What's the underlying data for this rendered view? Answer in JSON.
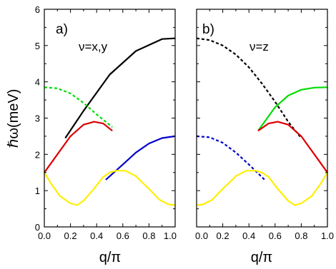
{
  "chart_data": [
    {
      "type": "line",
      "panel_label": "a)",
      "annotation": "ν=x,y",
      "xlabel": "q/π",
      "ylabel": "ℏω(meV)",
      "xlim": [
        0,
        1
      ],
      "ylim": [
        0,
        6
      ],
      "x_ticks": [
        "0.0",
        "0.2",
        "0.4",
        "0.6",
        "0.8",
        "1.0"
      ],
      "y_ticks": [
        "0",
        "1",
        "2",
        "3",
        "4",
        "5",
        "6"
      ],
      "grid": false,
      "series": [
        {
          "color": "#000000",
          "style": "solid",
          "x": [
            0.16,
            0.3,
            0.5,
            0.7,
            0.9,
            1.0
          ],
          "y": [
            2.45,
            3.2,
            4.2,
            4.85,
            5.18,
            5.2
          ]
        },
        {
          "color": "#00dd00",
          "style": "dashed",
          "x": [
            0.0,
            0.1,
            0.2,
            0.3,
            0.4,
            0.52
          ],
          "y": [
            3.85,
            3.82,
            3.68,
            3.42,
            3.1,
            2.75
          ]
        },
        {
          "color": "#dd0000",
          "style": "solid",
          "x": [
            0.0,
            0.1,
            0.2,
            0.3,
            0.38,
            0.45,
            0.52
          ],
          "y": [
            1.5,
            2.0,
            2.5,
            2.82,
            2.9,
            2.85,
            2.65
          ]
        },
        {
          "color": "#0000cc",
          "style": "solid",
          "x": [
            0.47,
            0.6,
            0.7,
            0.8,
            0.9,
            1.0
          ],
          "y": [
            1.3,
            1.72,
            2.05,
            2.3,
            2.45,
            2.5
          ]
        },
        {
          "color": "#ffee00",
          "style": "solid",
          "x": [
            0.0,
            0.05,
            0.12,
            0.2,
            0.25,
            0.3,
            0.38,
            0.45,
            0.5,
            0.55,
            0.62,
            0.7,
            0.75,
            0.8,
            0.88,
            0.95,
            1.0
          ],
          "y": [
            1.5,
            1.2,
            0.85,
            0.65,
            0.6,
            0.72,
            1.05,
            1.38,
            1.5,
            1.55,
            1.55,
            1.4,
            1.22,
            1.05,
            0.75,
            0.62,
            0.6
          ]
        }
      ]
    },
    {
      "type": "line",
      "panel_label": "b)",
      "annotation": "ν=z",
      "xlabel": "q/π",
      "xlim": [
        0,
        1
      ],
      "ylim": [
        0,
        6
      ],
      "x_ticks": [
        "0.0",
        "0.2",
        "0.4",
        "0.6",
        "0.8",
        "1.0"
      ],
      "grid": false,
      "series": [
        {
          "color": "#000000",
          "style": "dashed",
          "x": [
            0.0,
            0.1,
            0.2,
            0.3,
            0.4,
            0.5,
            0.6,
            0.7,
            0.8
          ],
          "y": [
            5.2,
            5.15,
            5.0,
            4.75,
            4.4,
            3.95,
            3.45,
            2.9,
            2.45
          ]
        },
        {
          "color": "#00dd00",
          "style": "solid",
          "x": [
            0.47,
            0.55,
            0.6,
            0.7,
            0.8,
            0.9,
            1.0
          ],
          "y": [
            2.65,
            3.05,
            3.3,
            3.62,
            3.78,
            3.84,
            3.85
          ]
        },
        {
          "color": "#dd0000",
          "style": "solid",
          "x": [
            0.47,
            0.55,
            0.62,
            0.7,
            0.8,
            0.9,
            1.0
          ],
          "y": [
            2.65,
            2.85,
            2.9,
            2.82,
            2.5,
            2.0,
            1.5
          ]
        },
        {
          "color": "#0000cc",
          "style": "dashed",
          "x": [
            0.0,
            0.1,
            0.2,
            0.3,
            0.4,
            0.52
          ],
          "y": [
            2.5,
            2.47,
            2.32,
            2.05,
            1.72,
            1.3
          ]
        },
        {
          "color": "#ffee00",
          "style": "solid",
          "x": [
            0.0,
            0.05,
            0.12,
            0.2,
            0.25,
            0.3,
            0.38,
            0.45,
            0.5,
            0.55,
            0.62,
            0.7,
            0.75,
            0.8,
            0.88,
            0.95,
            1.0
          ],
          "y": [
            0.6,
            0.62,
            0.75,
            1.05,
            1.22,
            1.4,
            1.55,
            1.55,
            1.5,
            1.38,
            1.05,
            0.72,
            0.6,
            0.65,
            0.85,
            1.2,
            1.5
          ]
        }
      ]
    }
  ]
}
